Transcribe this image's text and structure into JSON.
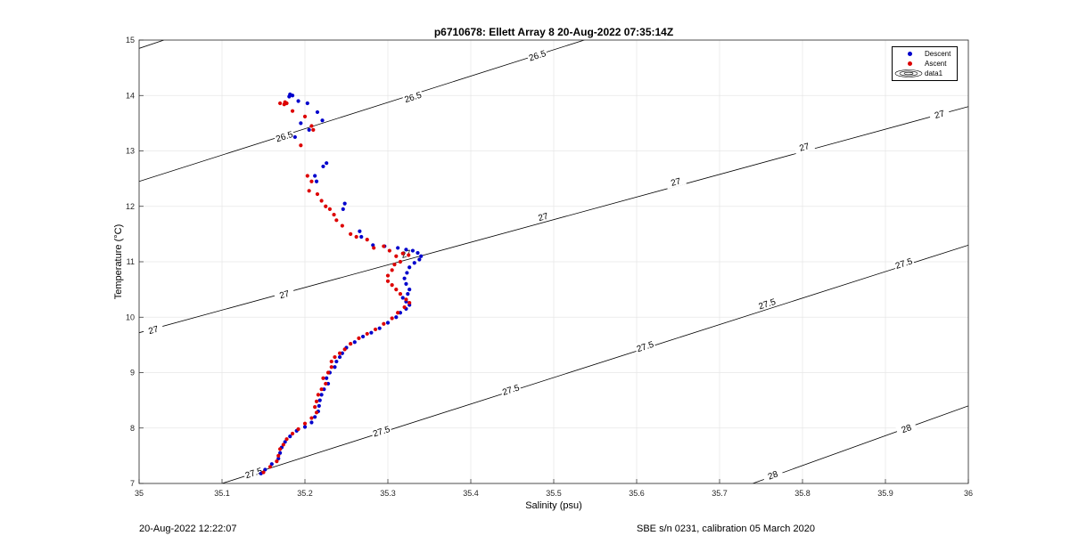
{
  "chart_data": {
    "type": "scatter",
    "title": "p6710678: Ellett Array 8 20-Aug-2022 07:35:14Z",
    "xlabel": "Salinity (psu)",
    "ylabel": "Temperature (°C)",
    "xlim": [
      35,
      36
    ],
    "ylim": [
      7,
      15
    ],
    "xticks": [
      "35",
      "35.1",
      "35.2",
      "35.3",
      "35.4",
      "35.5",
      "35.6",
      "35.7",
      "35.8",
      "35.9",
      "36"
    ],
    "yticks": [
      "7",
      "8",
      "9",
      "10",
      "11",
      "12",
      "13",
      "14",
      "15"
    ],
    "grid": true,
    "legend_position": "top-right",
    "series": [
      {
        "name": "Descent",
        "color": "#0000cc",
        "points": [
          [
            35.182,
            14.02
          ],
          [
            35.185,
            14.0
          ],
          [
            35.181,
            13.98
          ],
          [
            35.192,
            13.9
          ],
          [
            35.203,
            13.86
          ],
          [
            35.215,
            13.7
          ],
          [
            35.221,
            13.55
          ],
          [
            35.195,
            13.5
          ],
          [
            35.205,
            13.38
          ],
          [
            35.188,
            13.25
          ],
          [
            35.226,
            12.78
          ],
          [
            35.222,
            12.72
          ],
          [
            35.212,
            12.55
          ],
          [
            35.214,
            12.45
          ],
          [
            35.248,
            12.05
          ],
          [
            35.246,
            11.95
          ],
          [
            35.266,
            11.55
          ],
          [
            35.268,
            11.45
          ],
          [
            35.282,
            11.3
          ],
          [
            35.296,
            11.28
          ],
          [
            35.312,
            11.25
          ],
          [
            35.322,
            11.22
          ],
          [
            35.33,
            11.2
          ],
          [
            35.336,
            11.16
          ],
          [
            35.34,
            11.1
          ],
          [
            35.338,
            11.04
          ],
          [
            35.332,
            10.98
          ],
          [
            35.326,
            10.9
          ],
          [
            35.323,
            10.8
          ],
          [
            35.32,
            10.7
          ],
          [
            35.322,
            10.6
          ],
          [
            35.326,
            10.5
          ],
          [
            35.324,
            10.42
          ],
          [
            35.318,
            10.35
          ],
          [
            35.322,
            10.28
          ],
          [
            35.326,
            10.22
          ],
          [
            35.322,
            10.15
          ],
          [
            35.315,
            10.08
          ],
          [
            35.31,
            10.0
          ],
          [
            35.3,
            9.9
          ],
          [
            35.29,
            9.8
          ],
          [
            35.28,
            9.72
          ],
          [
            35.27,
            9.65
          ],
          [
            35.26,
            9.55
          ],
          [
            35.25,
            9.45
          ],
          [
            35.245,
            9.35
          ],
          [
            35.242,
            9.28
          ],
          [
            35.238,
            9.2
          ],
          [
            35.236,
            9.1
          ],
          [
            35.23,
            9.0
          ],
          [
            35.226,
            8.9
          ],
          [
            35.228,
            8.8
          ],
          [
            35.223,
            8.7
          ],
          [
            35.22,
            8.6
          ],
          [
            35.218,
            8.5
          ],
          [
            35.217,
            8.4
          ],
          [
            35.216,
            8.3
          ],
          [
            35.212,
            8.2
          ],
          [
            35.208,
            8.1
          ],
          [
            35.2,
            8.02
          ],
          [
            35.19,
            7.95
          ],
          [
            35.182,
            7.85
          ],
          [
            35.176,
            7.75
          ],
          [
            35.172,
            7.65
          ],
          [
            35.17,
            7.55
          ],
          [
            35.168,
            7.45
          ],
          [
            35.16,
            7.35
          ],
          [
            35.152,
            7.25
          ],
          [
            35.147,
            7.18
          ]
        ]
      },
      {
        "name": "Ascent",
        "color": "#dd0000",
        "points": [
          [
            35.176,
            13.88
          ],
          [
            35.17,
            13.86
          ],
          [
            35.175,
            13.84
          ],
          [
            35.178,
            13.86
          ],
          [
            35.185,
            13.72
          ],
          [
            35.2,
            13.62
          ],
          [
            35.208,
            13.45
          ],
          [
            35.21,
            13.38
          ],
          [
            35.195,
            13.1
          ],
          [
            35.203,
            12.55
          ],
          [
            35.208,
            12.45
          ],
          [
            35.205,
            12.28
          ],
          [
            35.215,
            12.22
          ],
          [
            35.22,
            12.1
          ],
          [
            35.225,
            12.0
          ],
          [
            35.23,
            11.95
          ],
          [
            35.235,
            11.85
          ],
          [
            35.238,
            11.75
          ],
          [
            35.245,
            11.65
          ],
          [
            35.255,
            11.5
          ],
          [
            35.262,
            11.45
          ],
          [
            35.275,
            11.4
          ],
          [
            35.283,
            11.25
          ],
          [
            35.295,
            11.28
          ],
          [
            35.302,
            11.2
          ],
          [
            35.31,
            11.1
          ],
          [
            35.318,
            11.15
          ],
          [
            35.325,
            11.12
          ],
          [
            35.315,
            11.0
          ],
          [
            35.308,
            10.95
          ],
          [
            35.305,
            10.85
          ],
          [
            35.3,
            10.75
          ],
          [
            35.3,
            10.65
          ],
          [
            35.305,
            10.58
          ],
          [
            35.31,
            10.5
          ],
          [
            35.315,
            10.42
          ],
          [
            35.322,
            10.32
          ],
          [
            35.326,
            10.26
          ],
          [
            35.32,
            10.18
          ],
          [
            35.312,
            10.08
          ],
          [
            35.305,
            9.98
          ],
          [
            35.295,
            9.88
          ],
          [
            35.285,
            9.78
          ],
          [
            35.275,
            9.7
          ],
          [
            35.265,
            9.62
          ],
          [
            35.255,
            9.52
          ],
          [
            35.248,
            9.42
          ],
          [
            35.242,
            9.35
          ],
          [
            35.236,
            9.28
          ],
          [
            35.232,
            9.2
          ],
          [
            35.232,
            9.1
          ],
          [
            35.228,
            9.0
          ],
          [
            35.222,
            8.9
          ],
          [
            35.225,
            8.8
          ],
          [
            35.22,
            8.7
          ],
          [
            35.216,
            8.6
          ],
          [
            35.214,
            8.48
          ],
          [
            35.212,
            8.38
          ],
          [
            35.214,
            8.28
          ],
          [
            35.208,
            8.18
          ],
          [
            35.2,
            8.08
          ],
          [
            35.192,
            7.98
          ],
          [
            35.185,
            7.9
          ],
          [
            35.178,
            7.8
          ],
          [
            35.174,
            7.7
          ],
          [
            35.17,
            7.62
          ],
          [
            35.168,
            7.5
          ],
          [
            35.166,
            7.4
          ],
          [
            35.158,
            7.3
          ],
          [
            35.15,
            7.2
          ]
        ]
      }
    ],
    "contour_series_name": "data1",
    "contours": [
      {
        "level": "26.5",
        "line": [
          [
            35.0,
            12.45
          ],
          [
            36.0,
            17.2
          ]
        ],
        "labels": [
          [
            35.175,
            13.27
          ],
          [
            35.33,
            13.98
          ],
          [
            35.48,
            14.73
          ],
          [
            35.645,
            15.12
          ]
        ]
      },
      {
        "level": "26.5",
        "line": [
          [
            35.0,
            14.85
          ],
          [
            35.03,
            15.0
          ]
        ],
        "labels": []
      },
      {
        "level": "27",
        "line": [
          [
            35.0,
            9.72
          ],
          [
            36.0,
            13.8
          ]
        ],
        "labels": [
          [
            35.017,
            9.78
          ],
          [
            35.175,
            10.42
          ],
          [
            35.322,
            11.15
          ],
          [
            35.487,
            11.82
          ],
          [
            35.647,
            12.45
          ],
          [
            35.802,
            13.08
          ],
          [
            35.965,
            13.67
          ]
        ]
      },
      {
        "level": "27.5",
        "line": [
          [
            35.1,
            7.0
          ],
          [
            36.0,
            11.3
          ]
        ],
        "labels": [
          [
            35.138,
            7.2
          ],
          [
            35.292,
            7.95
          ],
          [
            35.448,
            8.7
          ],
          [
            35.61,
            9.48
          ],
          [
            35.757,
            10.25
          ],
          [
            35.922,
            10.98
          ]
        ]
      },
      {
        "level": "28",
        "line": [
          [
            35.74,
            7.0
          ],
          [
            36.0,
            8.4
          ]
        ],
        "labels": [
          [
            35.764,
            7.16
          ],
          [
            35.925,
            8.0
          ]
        ]
      }
    ]
  },
  "footer": {
    "timestamp": "20-Aug-2022 12:22:07",
    "calibration": "SBE s/n 0231, calibration 05 March 2020"
  }
}
